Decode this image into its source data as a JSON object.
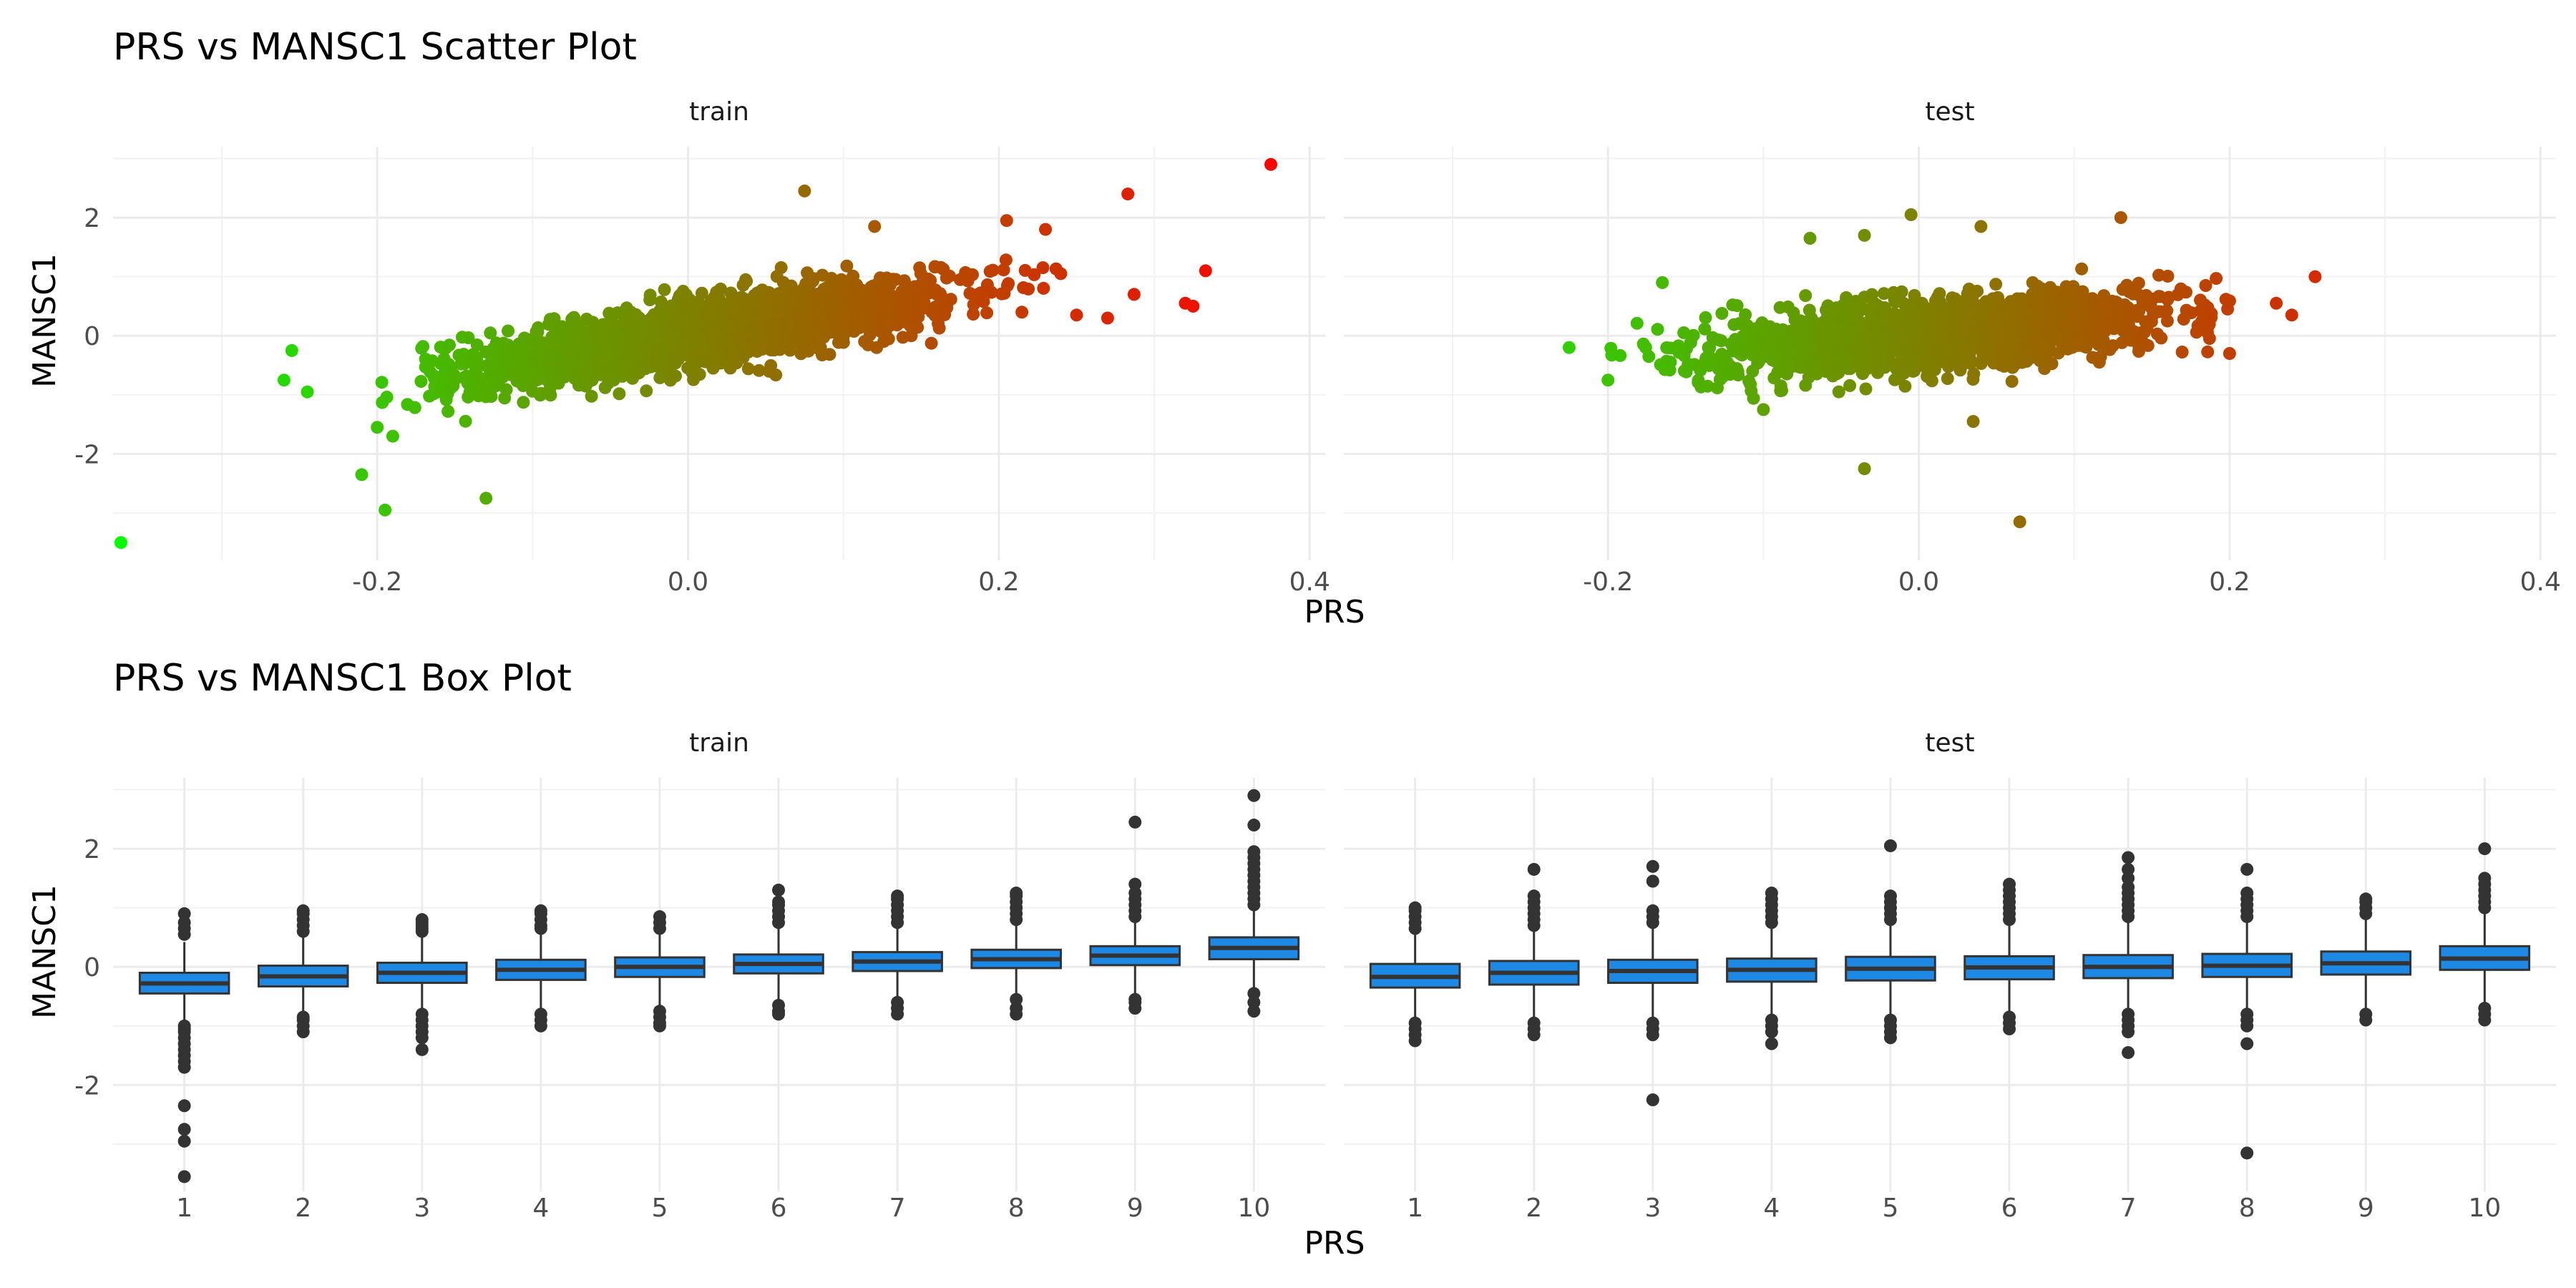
{
  "chart_data": [
    {
      "type": "scatter",
      "title": "PRS vs MANSC1 Scatter Plot",
      "xlabel": "PRS",
      "ylabel": "MANSC1",
      "facets": [
        "train",
        "test"
      ],
      "xlim": [
        -0.37,
        0.41
      ],
      "ylim": [
        -3.8,
        3.2
      ],
      "xticks": [
        -0.2,
        0.0,
        0.2,
        0.4
      ],
      "xtick_labels": [
        "-0.2",
        "0.0",
        "0.2",
        "0.4"
      ],
      "yticks": [
        -2,
        0,
        2
      ],
      "ytick_labels": [
        "-2",
        "0",
        "2"
      ],
      "grid": true,
      "color_gradient": [
        "#00ff00",
        "#ff0000"
      ],
      "series": [
        {
          "facet": "train",
          "slope": 4.3,
          "noise_sd": 0.27,
          "n_points": 2300,
          "x_range": [
            -0.2,
            0.24
          ],
          "outliers": [
            {
              "x": -0.365,
              "y": -3.5
            },
            {
              "x": -0.26,
              "y": -0.75
            },
            {
              "x": -0.255,
              "y": -0.25
            },
            {
              "x": -0.245,
              "y": -0.95
            },
            {
              "x": -0.21,
              "y": -2.35
            },
            {
              "x": -0.2,
              "y": -1.55
            },
            {
              "x": -0.19,
              "y": -1.7
            },
            {
              "x": -0.195,
              "y": -2.95
            },
            {
              "x": -0.13,
              "y": -2.75
            },
            {
              "x": 0.075,
              "y": 2.45
            },
            {
              "x": 0.12,
              "y": 1.85
            },
            {
              "x": 0.205,
              "y": 1.95
            },
            {
              "x": 0.23,
              "y": 1.8
            },
            {
              "x": 0.25,
              "y": 0.35
            },
            {
              "x": 0.27,
              "y": 0.3
            },
            {
              "x": 0.283,
              "y": 2.4
            },
            {
              "x": 0.287,
              "y": 0.7
            },
            {
              "x": 0.32,
              "y": 0.55
            },
            {
              "x": 0.325,
              "y": 0.5
            },
            {
              "x": 0.333,
              "y": 1.1
            },
            {
              "x": 0.375,
              "y": 2.9
            }
          ]
        },
        {
          "facet": "test",
          "slope": 2.2,
          "noise_sd": 0.3,
          "n_points": 1600,
          "x_range": [
            -0.2,
            0.2
          ],
          "outliers": [
            {
              "x": -0.225,
              "y": -0.2
            },
            {
              "x": -0.2,
              "y": -0.75
            },
            {
              "x": -0.165,
              "y": 0.9
            },
            {
              "x": -0.1,
              "y": -1.25
            },
            {
              "x": -0.07,
              "y": 1.65
            },
            {
              "x": -0.035,
              "y": 1.7
            },
            {
              "x": -0.035,
              "y": -2.25
            },
            {
              "x": -0.005,
              "y": 2.05
            },
            {
              "x": 0.035,
              "y": -1.45
            },
            {
              "x": 0.04,
              "y": 1.85
            },
            {
              "x": 0.065,
              "y": -3.15
            },
            {
              "x": 0.13,
              "y": 2.0
            },
            {
              "x": 0.2,
              "y": -0.3
            },
            {
              "x": 0.23,
              "y": 0.55
            },
            {
              "x": 0.24,
              "y": 0.35
            },
            {
              "x": 0.255,
              "y": 1.0
            }
          ]
        }
      ]
    },
    {
      "type": "box",
      "title": "PRS vs MANSC1 Box Plot",
      "xlabel": "PRS",
      "ylabel": "MANSC1",
      "facets": [
        "train",
        "test"
      ],
      "categories": [
        "1",
        "2",
        "3",
        "4",
        "5",
        "6",
        "7",
        "8",
        "9",
        "10"
      ],
      "ylim": [
        -3.8,
        3.2
      ],
      "yticks": [
        -2,
        0,
        2
      ],
      "ytick_labels": [
        "-2",
        "0",
        "2"
      ],
      "grid": true,
      "box_color": "#1e88e5",
      "series": [
        {
          "facet": "train",
          "boxes": [
            {
              "q1": -0.45,
              "median": -0.28,
              "q3": -0.1,
              "whisker_low": -0.95,
              "whisker_high": 0.42,
              "outliers": [
                -1.0,
                -1.05,
                -1.1,
                -1.2,
                -1.3,
                -1.4,
                -1.5,
                -1.6,
                -1.7,
                -2.35,
                -2.75,
                -2.95,
                -3.55,
                0.55,
                0.65,
                0.75,
                0.9
              ]
            },
            {
              "q1": -0.33,
              "median": -0.16,
              "q3": 0.02,
              "whisker_low": -0.82,
              "whisker_high": 0.52,
              "outliers": [
                -0.85,
                -0.9,
                -1.0,
                -1.1,
                0.6,
                0.7,
                0.8,
                0.9,
                0.95
              ]
            },
            {
              "q1": -0.27,
              "median": -0.1,
              "q3": 0.07,
              "whisker_low": -0.75,
              "whisker_high": 0.55,
              "outliers": [
                -0.8,
                -0.9,
                -1.0,
                -1.1,
                -1.2,
                -1.4,
                0.6,
                0.65,
                0.7,
                0.75,
                0.8
              ]
            },
            {
              "q1": -0.22,
              "median": -0.05,
              "q3": 0.12,
              "whisker_low": -0.7,
              "whisker_high": 0.6,
              "outliers": [
                -0.8,
                -0.9,
                -1.0,
                0.65,
                0.7,
                0.8,
                0.9,
                0.95
              ]
            },
            {
              "q1": -0.17,
              "median": 0.0,
              "q3": 0.16,
              "whisker_low": -0.65,
              "whisker_high": 0.62,
              "outliers": [
                -0.75,
                -0.85,
                -0.95,
                -1.0,
                0.65,
                0.75,
                0.85
              ]
            },
            {
              "q1": -0.11,
              "median": 0.05,
              "q3": 0.21,
              "whisker_low": -0.58,
              "whisker_high": 0.68,
              "outliers": [
                -0.65,
                -0.75,
                -0.8,
                0.75,
                0.85,
                0.95,
                1.05,
                1.1,
                1.3
              ]
            },
            {
              "q1": -0.07,
              "median": 0.09,
              "q3": 0.25,
              "whisker_low": -0.55,
              "whisker_high": 0.72,
              "outliers": [
                -0.6,
                -0.7,
                -0.8,
                0.75,
                0.85,
                0.95,
                1.05,
                1.15,
                1.2
              ]
            },
            {
              "q1": -0.02,
              "median": 0.13,
              "q3": 0.29,
              "whisker_low": -0.48,
              "whisker_high": 0.76,
              "outliers": [
                -0.55,
                -0.7,
                -0.8,
                0.8,
                0.9,
                1.0,
                1.1,
                1.2,
                1.25
              ]
            },
            {
              "q1": 0.03,
              "median": 0.19,
              "q3": 0.35,
              "whisker_low": -0.45,
              "whisker_high": 0.82,
              "outliers": [
                -0.55,
                -0.6,
                -0.7,
                0.85,
                0.95,
                1.05,
                1.15,
                1.25,
                1.4,
                2.45
              ]
            },
            {
              "q1": 0.13,
              "median": 0.32,
              "q3": 0.5,
              "whisker_low": -0.35,
              "whisker_high": 1.0,
              "outliers": [
                -0.45,
                -0.6,
                -0.75,
                1.05,
                1.15,
                1.25,
                1.35,
                1.45,
                1.55,
                1.65,
                1.75,
                1.85,
                1.95,
                2.4,
                2.9
              ]
            }
          ]
        },
        {
          "facet": "test",
          "boxes": [
            {
              "q1": -0.35,
              "median": -0.17,
              "q3": 0.05,
              "whisker_low": -0.9,
              "whisker_high": 0.6,
              "outliers": [
                -0.95,
                -1.05,
                -1.15,
                -1.25,
                0.65,
                0.75,
                0.85,
                0.95,
                1.0
              ]
            },
            {
              "q1": -0.3,
              "median": -0.1,
              "q3": 0.1,
              "whisker_low": -0.88,
              "whisker_high": 0.65,
              "outliers": [
                -0.95,
                -1.05,
                -1.15,
                0.7,
                0.8,
                0.9,
                1.0,
                1.1,
                1.2,
                1.65
              ]
            },
            {
              "q1": -0.27,
              "median": -0.07,
              "q3": 0.12,
              "whisker_low": -0.85,
              "whisker_high": 0.68,
              "outliers": [
                -0.95,
                -1.05,
                -1.15,
                -2.25,
                0.75,
                0.85,
                0.95,
                1.45,
                1.7
              ]
            },
            {
              "q1": -0.25,
              "median": -0.05,
              "q3": 0.14,
              "whisker_low": -0.83,
              "whisker_high": 0.7,
              "outliers": [
                -0.9,
                -1.0,
                -1.1,
                -1.3,
                0.75,
                0.85,
                0.95,
                1.05,
                1.15,
                1.25
              ]
            },
            {
              "q1": -0.23,
              "median": -0.03,
              "q3": 0.17,
              "whisker_low": -0.82,
              "whisker_high": 0.72,
              "outliers": [
                -0.9,
                -1.0,
                -1.1,
                -1.2,
                0.8,
                0.9,
                1.0,
                1.1,
                1.2,
                2.05
              ]
            },
            {
              "q1": -0.21,
              "median": -0.01,
              "q3": 0.18,
              "whisker_low": -0.78,
              "whisker_high": 0.75,
              "outliers": [
                -0.85,
                -0.95,
                -1.05,
                0.8,
                0.9,
                1.0,
                1.1,
                1.2,
                1.3,
                1.4
              ]
            },
            {
              "q1": -0.19,
              "median": 0.0,
              "q3": 0.2,
              "whisker_low": -0.75,
              "whisker_high": 0.78,
              "outliers": [
                -0.8,
                -0.9,
                -1.0,
                -1.1,
                -1.45,
                0.85,
                0.95,
                1.05,
                1.15,
                1.25,
                1.35,
                1.5,
                1.65,
                1.85
              ]
            },
            {
              "q1": -0.17,
              "median": 0.02,
              "q3": 0.22,
              "whisker_low": -0.72,
              "whisker_high": 0.8,
              "outliers": [
                -0.8,
                -0.9,
                -1.0,
                -1.3,
                -3.15,
                0.85,
                0.95,
                1.05,
                1.15,
                1.25,
                1.65
              ]
            },
            {
              "q1": -0.13,
              "median": 0.06,
              "q3": 0.26,
              "whisker_low": -0.7,
              "whisker_high": 0.83,
              "outliers": [
                -0.8,
                -0.9,
                0.9,
                1.0,
                1.1,
                1.15
              ]
            },
            {
              "q1": -0.05,
              "median": 0.14,
              "q3": 0.35,
              "whisker_low": -0.62,
              "whisker_high": 0.93,
              "outliers": [
                -0.7,
                -0.8,
                -0.9,
                1.0,
                1.1,
                1.2,
                1.3,
                1.4,
                1.5,
                2.0
              ]
            }
          ]
        }
      ]
    }
  ]
}
